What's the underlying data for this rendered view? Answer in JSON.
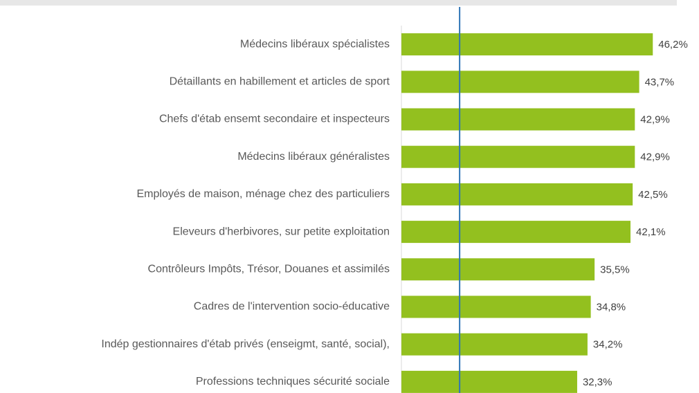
{
  "chart_data": {
    "type": "bar",
    "orientation": "horizontal",
    "categories": [
      "Médecins libéraux spécialistes",
      "Détaillants en habillement et articles de sport",
      "Chefs d'étab ensemt secondaire et inspecteurs",
      "Médecins libéraux généralistes",
      "Employés de maison, ménage chez des particuliers",
      "Eleveurs d'herbivores, sur petite exploitation",
      "Contrôleurs Impôts, Trésor,  Douanes et assimilés",
      "Cadres de l'intervention socio-éducative",
      "Indép gestionnaires d'étab privés (enseigmt, santé, social),",
      "Professions techniques sécurité sociale"
    ],
    "values": [
      46.2,
      43.7,
      42.9,
      42.9,
      42.5,
      42.1,
      35.5,
      34.8,
      34.2,
      32.3
    ],
    "value_labels": [
      "46,2%",
      "43,7%",
      "42,9%",
      "42,9%",
      "42,5%",
      "42,1%",
      "35,5%",
      "34,8%",
      "34,2%",
      "32,3%"
    ],
    "color": "#93c01f",
    "xlim": [
      0,
      51
    ],
    "reference_line": {
      "value": 10.7,
      "color": "#2e75b6"
    }
  }
}
